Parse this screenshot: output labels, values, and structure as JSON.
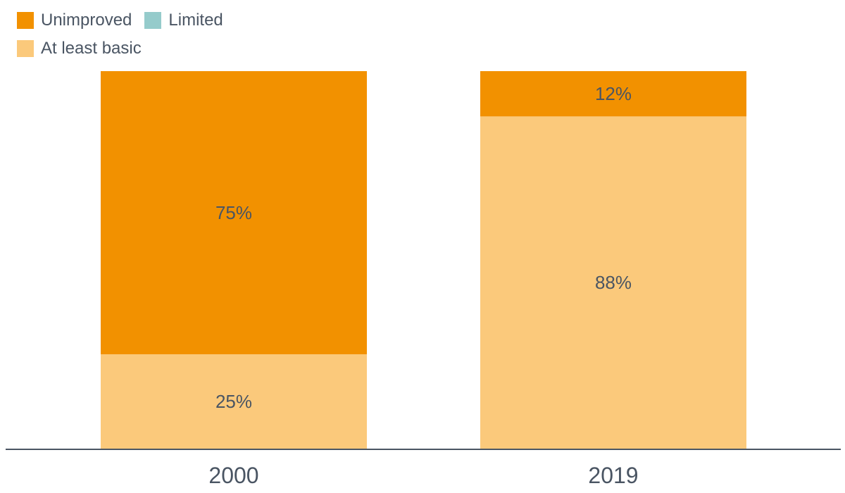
{
  "chart_data": {
    "type": "bar",
    "stacked": true,
    "categories": [
      "2000",
      "2019"
    ],
    "series": [
      {
        "name": "Unimproved",
        "color": "#f29100",
        "values": [
          75,
          12
        ]
      },
      {
        "name": "Limited",
        "color": "#95cbcb",
        "values": [
          0,
          0
        ]
      },
      {
        "name": "At least basic",
        "color": "#fbc97b",
        "values": [
          25,
          88
        ]
      }
    ],
    "data_labels": {
      "Unimproved": [
        "75%",
        "12%"
      ],
      "At least basic": [
        "25%",
        "88%"
      ]
    },
    "ylim": [
      0,
      100
    ],
    "title": "",
    "xlabel": "",
    "ylabel": "",
    "grid": false,
    "legend_position": "top-left",
    "axis_color": "#4a5563"
  },
  "legend": {
    "unimproved": "Unimproved",
    "limited": "Limited",
    "at_least_basic": "At least basic"
  }
}
